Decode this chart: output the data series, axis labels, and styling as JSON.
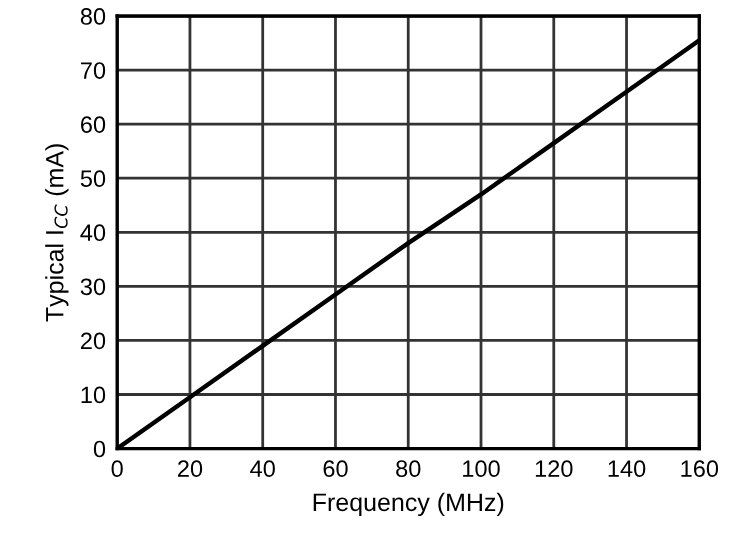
{
  "chart_data": {
    "type": "line",
    "xlabel": "Frequency (MHz)",
    "ylabel": "Typical I$_{CC}$ (mA)",
    "series": [
      {
        "color": "#000000",
        "x": [
          0,
          20,
          40,
          60,
          80,
          100,
          120,
          140,
          160
        ],
        "values": [
          0,
          9.5,
          19,
          28.5,
          38,
          47,
          56.5,
          66,
          75.5
        ]
      }
    ],
    "xlim": [
      0,
      160
    ],
    "xticks": [
      0,
      20,
      40,
      60,
      80,
      100,
      120,
      140,
      160
    ],
    "ylim": [
      0,
      80
    ],
    "yticks": [
      0,
      10,
      20,
      30,
      40,
      50,
      60,
      70,
      80
    ],
    "grid": true,
    "line_style": "solid",
    "marker": "none"
  }
}
